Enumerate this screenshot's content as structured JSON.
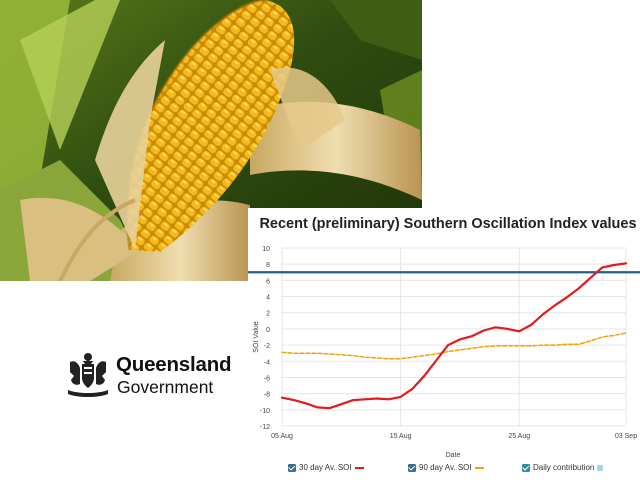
{
  "logo": {
    "line1": "Queensland",
    "line2": "Government"
  },
  "colors": {
    "soi30": "#e41a1c",
    "soi90": "#f0a30a",
    "threshold": "#1f5f8b",
    "daily": "#a8d8e0",
    "checkbox": "#3a6f8f"
  },
  "chart_data": {
    "type": "line",
    "title": "Recent (preliminary) Southern Oscillation Index values",
    "xlabel": "Date",
    "ylabel": "SOI Value",
    "ylim": [
      -12,
      10
    ],
    "yticks": [
      "10",
      "8",
      "6",
      "4",
      "2",
      "0",
      "-2",
      "-4",
      "-6",
      "-8",
      "-10",
      "-12"
    ],
    "xticks": [
      "05 Aug",
      "15 Aug",
      "25 Aug",
      "03 Sep"
    ],
    "grid": true,
    "legend_position": "bottom",
    "threshold": 7,
    "series": [
      {
        "name": "30 day Av. SOI",
        "x": [
          0,
          1,
          2,
          3,
          4,
          5,
          6,
          7,
          8,
          9,
          10,
          11,
          12,
          13,
          14,
          15,
          16,
          17,
          18,
          19,
          20,
          21,
          22,
          23,
          24,
          25,
          26,
          27,
          28,
          29
        ],
        "values": [
          -8.5,
          -8.8,
          -9.2,
          -9.7,
          -9.8,
          -9.3,
          -8.8,
          -8.7,
          -8.6,
          -8.7,
          -8.4,
          -7.4,
          -5.8,
          -3.9,
          -2.0,
          -1.3,
          -0.9,
          -0.2,
          0.2,
          0.0,
          -0.3,
          0.5,
          1.8,
          2.9,
          3.9,
          5.0,
          6.3,
          7.6,
          7.9,
          8.1
        ]
      },
      {
        "name": "90 day Av. SOI",
        "x": [
          0,
          1,
          2,
          3,
          4,
          5,
          6,
          7,
          8,
          9,
          10,
          11,
          12,
          13,
          14,
          15,
          16,
          17,
          18,
          19,
          20,
          21,
          22,
          23,
          24,
          25,
          26,
          27,
          28,
          29
        ],
        "values": [
          -2.9,
          -3.0,
          -3.0,
          -3.0,
          -3.1,
          -3.2,
          -3.3,
          -3.5,
          -3.6,
          -3.7,
          -3.7,
          -3.5,
          -3.3,
          -3.1,
          -2.8,
          -2.6,
          -2.4,
          -2.2,
          -2.1,
          -2.1,
          -2.1,
          -2.1,
          -2.0,
          -2.0,
          -1.9,
          -1.9,
          -1.5,
          -1.0,
          -0.8,
          -0.5
        ]
      },
      {
        "name": "Daily contribution",
        "values": []
      }
    ]
  }
}
